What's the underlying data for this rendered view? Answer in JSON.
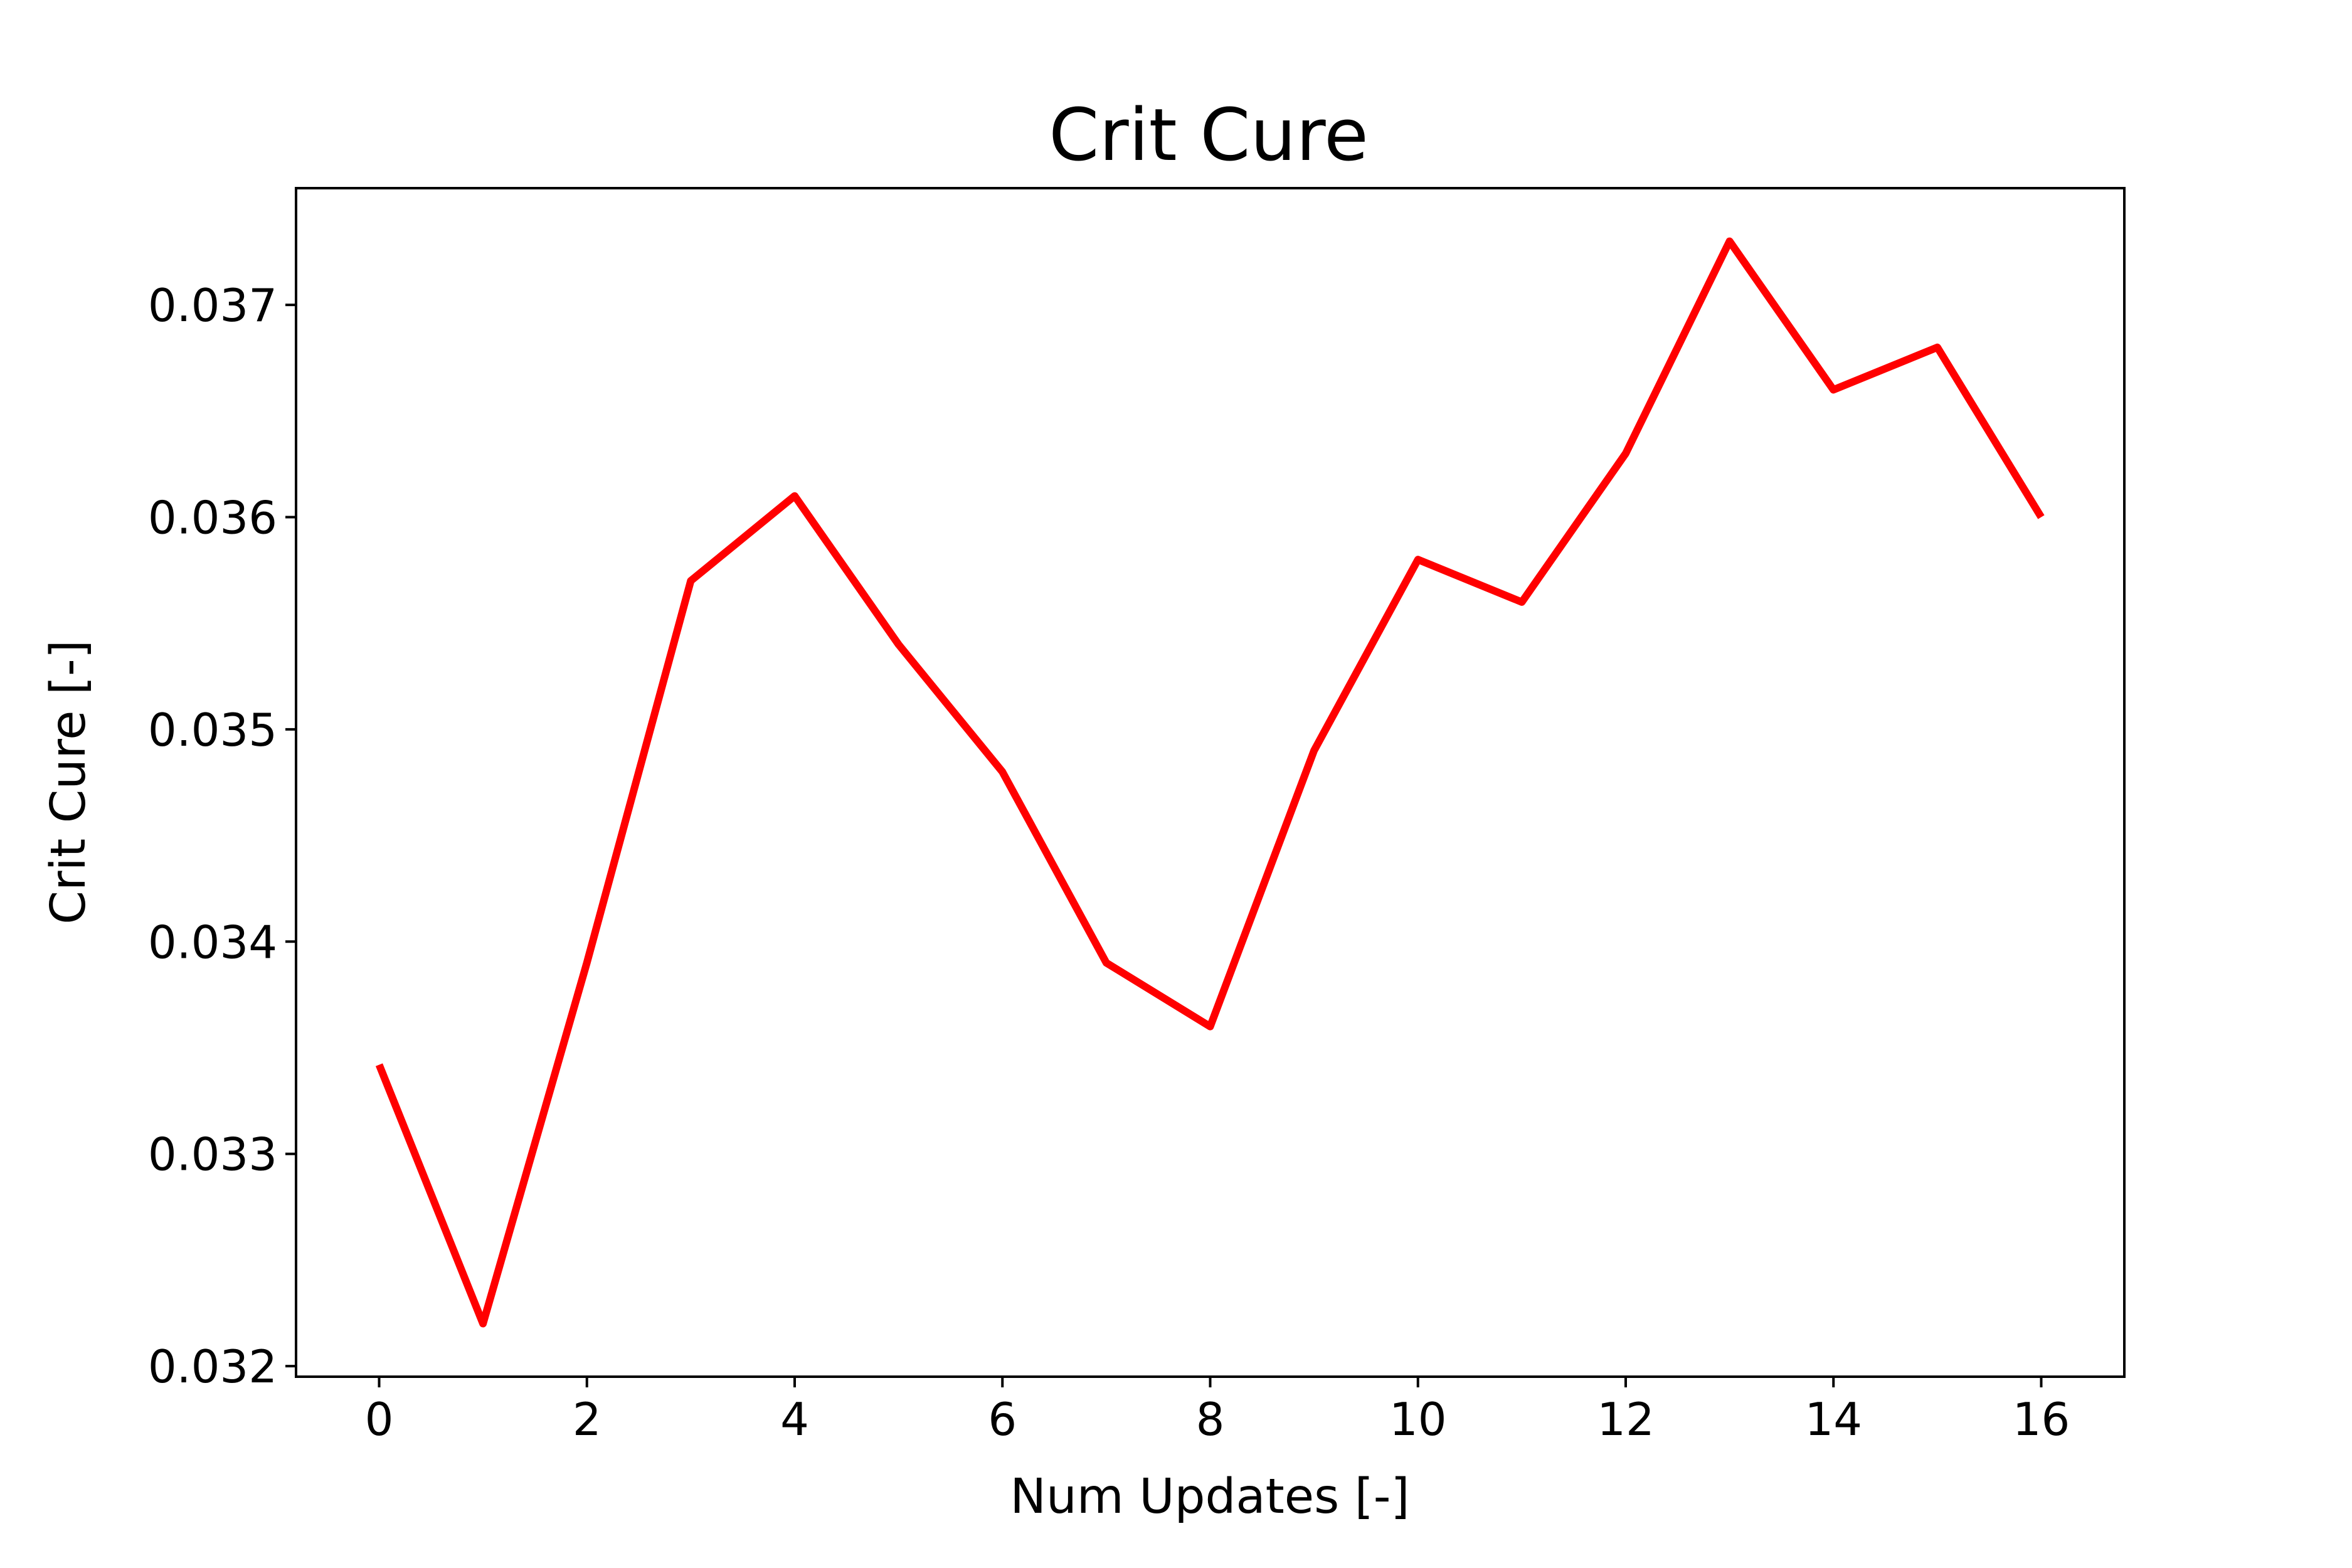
{
  "chart_data": {
    "type": "line",
    "title": "Crit Cure",
    "xlabel": "Num Updates [-]",
    "ylabel": "Crit Cure [-]",
    "xlim": [
      -0.8,
      16.8
    ],
    "ylim": [
      0.03195,
      0.03755
    ],
    "xticks": [
      0,
      2,
      4,
      6,
      8,
      10,
      12,
      14,
      16
    ],
    "xtick_labels": [
      "0",
      "2",
      "4",
      "6",
      "8",
      "10",
      "12",
      "14",
      "16"
    ],
    "yticks": [
      0.032,
      0.033,
      0.034,
      0.035,
      0.036,
      0.037
    ],
    "ytick_labels": [
      "0.032",
      "0.033",
      "0.034",
      "0.035",
      "0.036",
      "0.037"
    ],
    "grid": false,
    "series": [
      {
        "color": "#ff0000",
        "x": [
          0,
          1,
          2,
          3,
          4,
          5,
          6,
          7,
          8,
          9,
          10,
          11,
          12,
          13,
          14,
          15,
          16
        ],
        "values": [
          0.03342,
          0.0322,
          0.0339,
          0.0357,
          0.0361,
          0.0354,
          0.0348,
          0.0339,
          0.0336,
          0.0349,
          0.0358,
          0.0356,
          0.0363,
          0.0373,
          0.0366,
          0.0368,
          0.036
        ]
      }
    ]
  }
}
